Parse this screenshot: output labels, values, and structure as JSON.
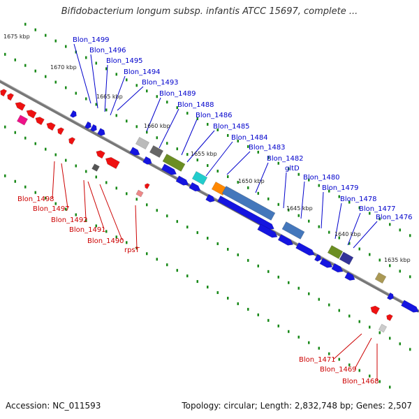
{
  "title": "Bifidobacterium longum subsp. infantis ATCC 15697, complete ...",
  "footer": {
    "accession": "Accession: NC_011593",
    "summary": "Topology: circular; Length: 2,832,748 bp; Genes: 2,507"
  },
  "colors": {
    "forward_label": "#0000cc",
    "reverse_label": "#cc0000",
    "tick": "#1a8a1a",
    "backbone": "#7a7a7a"
  },
  "kbp_labels": [
    "1675 kbp",
    "1670 kbp",
    "1665 kbp",
    "1660 kbp",
    "1655 kbp",
    "1650 kbp",
    "1645 kbp",
    "1640 kbp",
    "1635 kbp"
  ],
  "forward_labels": [
    "Blon_1499",
    "Blon_1496",
    "Blon_1495",
    "Blon_1494",
    "Blon_1493",
    "Blon_1489",
    "Blon_1488",
    "Blon_1486",
    "Blon_1485",
    "Blon_1484",
    "Blon_1483",
    "Blon_1482",
    "gltD",
    "Blon_1480",
    "Blon_1479",
    "Blon_1478",
    "Blon_1477",
    "Blon_1476"
  ],
  "reverse_labels": [
    "Blon_1498",
    "Blon_1497",
    "Blon_1492",
    "Blon_1491",
    "Blon_1490",
    "rpsT",
    "Blon_1471",
    "Blon_1469",
    "Blon_1468"
  ]
}
